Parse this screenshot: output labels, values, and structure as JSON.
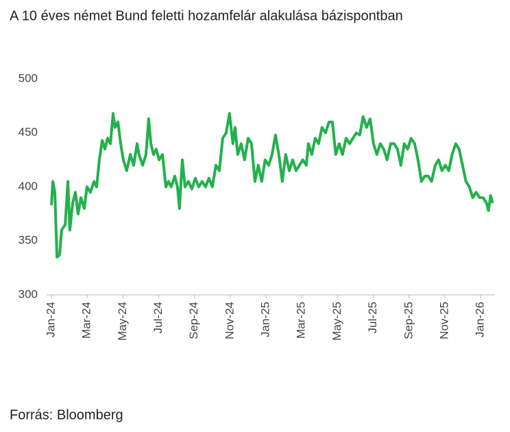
{
  "title": "A 10 éves német Bund feletti hozamfelár alakulása bázispontban",
  "source": "Forrás: Bloomberg",
  "chart_data": {
    "type": "line",
    "x": [
      0,
      0.08,
      0.19,
      0.31,
      0.46,
      0.57,
      0.77,
      0.92,
      1.03,
      1.19,
      1.34,
      1.49,
      1.65,
      1.84,
      1.99,
      2.18,
      2.38,
      2.53,
      2.68,
      2.84,
      2.99,
      3.14,
      3.3,
      3.45,
      3.56,
      3.72,
      3.87,
      4.02,
      4.21,
      4.41,
      4.6,
      4.79,
      4.9,
      5.1,
      5.29,
      5.44,
      5.56,
      5.71,
      5.86,
      6.02,
      6.21,
      6.4,
      6.55,
      6.7,
      6.9,
      7.05,
      7.16,
      7.32,
      7.47,
      7.66,
      7.85,
      8.05,
      8.24,
      8.43,
      8.62,
      8.81,
      9.0,
      9.2,
      9.39,
      9.58,
      9.77,
      9.96,
      10.15,
      10.27,
      10.42,
      10.61,
      10.8,
      11.0,
      11.19,
      11.38,
      11.57,
      11.76,
      11.95,
      12.15,
      12.34,
      12.53,
      12.72,
      12.91,
      13.1,
      13.3,
      13.49,
      13.68,
      13.87,
      14.06,
      14.25,
      14.37,
      14.56,
      14.75,
      14.94,
      15.13,
      15.33,
      15.52,
      15.71,
      15.9,
      16.09,
      16.28,
      16.48,
      16.67,
      16.86,
      17.05,
      17.24,
      17.43,
      17.62,
      17.82,
      18.01,
      18.2,
      18.39,
      18.58,
      18.77,
      18.97,
      19.16,
      19.35,
      19.54,
      19.73,
      19.92,
      20.11,
      20.31,
      20.5,
      20.69,
      20.88,
      21.07,
      21.26,
      21.46,
      21.65,
      21.84,
      22.03,
      22.22,
      22.41,
      22.61,
      22.8,
      22.99,
      23.18,
      23.37,
      23.56,
      23.75,
      23.95,
      24.14,
      24.33,
      24.44,
      24.56,
      24.67
    ],
    "values": [
      383,
      405,
      395,
      335,
      337,
      360,
      365,
      405,
      360,
      385,
      395,
      375,
      390,
      380,
      400,
      395,
      405,
      400,
      425,
      443,
      435,
      445,
      440,
      468,
      455,
      460,
      440,
      425,
      415,
      430,
      420,
      440,
      430,
      420,
      430,
      463,
      440,
      430,
      435,
      425,
      430,
      400,
      405,
      400,
      410,
      400,
      380,
      425,
      400,
      405,
      398,
      408,
      400,
      405,
      400,
      408,
      400,
      420,
      415,
      445,
      450,
      468,
      440,
      455,
      430,
      440,
      425,
      445,
      440,
      405,
      420,
      405,
      425,
      420,
      430,
      448,
      430,
      405,
      430,
      415,
      425,
      415,
      420,
      425,
      420,
      440,
      430,
      445,
      440,
      455,
      450,
      460,
      460,
      430,
      440,
      430,
      445,
      440,
      445,
      450,
      448,
      465,
      455,
      463,
      440,
      430,
      440,
      435,
      425,
      440,
      440,
      435,
      420,
      440,
      435,
      445,
      440,
      425,
      405,
      410,
      410,
      405,
      420,
      425,
      415,
      420,
      415,
      430,
      440,
      435,
      420,
      405,
      400,
      390,
      395,
      390,
      390,
      385,
      378,
      392,
      385
    ],
    "color": "#22b14c",
    "xlim": [
      0,
      24.8
    ],
    "xticks": [
      {
        "value": 0,
        "label": "Jan-24"
      },
      {
        "value": 2,
        "label": "Mar-24"
      },
      {
        "value": 4,
        "label": "May-24"
      },
      {
        "value": 6,
        "label": "Jul-24"
      },
      {
        "value": 8,
        "label": "Sep-24"
      },
      {
        "value": 10,
        "label": "Nov-24"
      },
      {
        "value": 12,
        "label": "Jan-25"
      },
      {
        "value": 14,
        "label": "Mar-25"
      },
      {
        "value": 16,
        "label": "May-25"
      },
      {
        "value": 18,
        "label": "Jul-25"
      },
      {
        "value": 20,
        "label": "Sep-25"
      },
      {
        "value": 22,
        "label": "Nov-25"
      },
      {
        "value": 24,
        "label": "Jan-26"
      }
    ],
    "ylim": [
      300,
      500
    ],
    "yticks": [
      300,
      350,
      400,
      450,
      500
    ],
    "grid": false
  }
}
